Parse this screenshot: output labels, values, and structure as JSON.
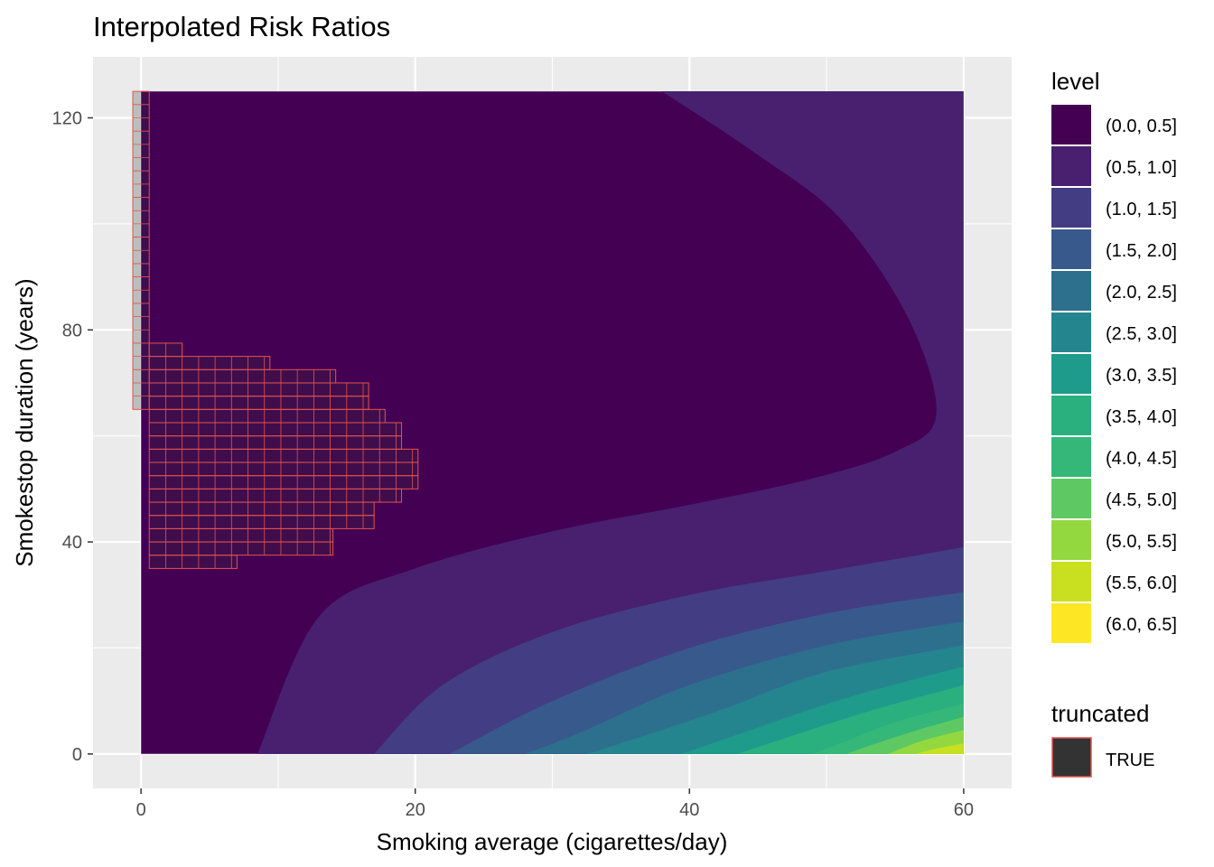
{
  "chart_data": {
    "type": "heatmap",
    "title": "Interpolated Risk Ratios",
    "xlabel": "Smoking average (cigarettes/day)",
    "ylabel": "Smokestop duration (years)",
    "xlim": [
      -3.5,
      63.5
    ],
    "ylim": [
      -6.5,
      131.5
    ],
    "x_ticks": [
      0,
      20,
      40,
      60
    ],
    "y_ticks": [
      0,
      40,
      80,
      120
    ],
    "x_minor": [
      10,
      30,
      50
    ],
    "y_minor": [
      20,
      60,
      100
    ],
    "grid": true,
    "panel_background": "#ebebeb",
    "data_extent": {
      "x": [
        0,
        60
      ],
      "y": [
        0,
        125
      ]
    },
    "level_legend": {
      "title": "level",
      "placement": "right",
      "levels": [
        {
          "label": "(0.0, 0.5]",
          "color": "#440154"
        },
        {
          "label": "(0.5, 1.0]",
          "color": "#48206f"
        },
        {
          "label": "(1.0, 1.5]",
          "color": "#433d84"
        },
        {
          "label": "(1.5, 2.0]",
          "color": "#38598c"
        },
        {
          "label": "(2.0, 2.5]",
          "color": "#2d708e"
        },
        {
          "label": "(2.5, 3.0]",
          "color": "#25858e"
        },
        {
          "label": "(3.0, 3.5]",
          "color": "#1e9b8a"
        },
        {
          "label": "(3.5, 4.0]",
          "color": "#2ab07f"
        },
        {
          "label": "(4.0, 4.5]",
          "color": "#35b779"
        },
        {
          "label": "(4.5, 5.0]",
          "color": "#5ec962"
        },
        {
          "label": "(5.0, 5.5]",
          "color": "#94d840"
        },
        {
          "label": "(5.5, 6.0]",
          "color": "#c8e020"
        },
        {
          "label": "(6.0, 6.5]",
          "color": "#fde725"
        }
      ]
    },
    "level_bands": [
      {
        "level": "(0.5, 1.0]",
        "boundary": [
          [
            38,
            125
          ],
          [
            45,
            113
          ],
          [
            51,
            101
          ],
          [
            56,
            82
          ],
          [
            58,
            64
          ],
          [
            55,
            57
          ],
          [
            49,
            52
          ],
          [
            40,
            47
          ],
          [
            30,
            42
          ],
          [
            20,
            35
          ],
          [
            13,
            26
          ],
          [
            8.5,
            0
          ]
        ]
      },
      {
        "level": "(1.0, 1.5]",
        "boundary": [
          [
            60,
            39
          ],
          [
            50,
            34.5
          ],
          [
            40,
            30
          ],
          [
            30,
            23
          ],
          [
            22,
            13
          ],
          [
            17,
            0
          ]
        ]
      },
      {
        "level": "(1.5, 2.0]",
        "boundary": [
          [
            60,
            30.5
          ],
          [
            50,
            26.5
          ],
          [
            40,
            20
          ],
          [
            30,
            10
          ],
          [
            22.5,
            0
          ]
        ]
      },
      {
        "level": "(2.0, 2.5]",
        "boundary": [
          [
            60,
            25
          ],
          [
            50,
            20.5
          ],
          [
            40,
            13
          ],
          [
            32,
            4
          ],
          [
            28,
            0
          ]
        ]
      },
      {
        "level": "(2.5, 3.0]",
        "boundary": [
          [
            60,
            20.5
          ],
          [
            50,
            15.5
          ],
          [
            42,
            8
          ],
          [
            35,
            2
          ],
          [
            32.5,
            0
          ]
        ]
      },
      {
        "level": "(3.0, 3.5]",
        "boundary": [
          [
            60,
            16.5
          ],
          [
            52,
            11
          ],
          [
            45,
            5
          ],
          [
            40,
            0.5
          ],
          [
            39,
            0
          ]
        ]
      },
      {
        "level": "(3.5, 4.0]",
        "boundary": [
          [
            60,
            13
          ],
          [
            53,
            8
          ],
          [
            47,
            3
          ],
          [
            43.5,
            0
          ]
        ]
      },
      {
        "level": "(4.0, 4.5]",
        "boundary": [
          [
            60,
            9.5
          ],
          [
            55,
            6
          ],
          [
            51,
            2
          ],
          [
            49,
            0
          ]
        ]
      },
      {
        "level": "(4.5, 5.0]",
        "boundary": [
          [
            60,
            7
          ],
          [
            56,
            4
          ],
          [
            52.5,
            1
          ],
          [
            51.5,
            0
          ]
        ]
      },
      {
        "level": "(5.0, 5.5]",
        "boundary": [
          [
            60,
            4.5
          ],
          [
            57,
            2.5
          ],
          [
            54.5,
            0
          ]
        ]
      },
      {
        "level": "(5.5, 6.0]",
        "boundary": [
          [
            60,
            2
          ],
          [
            58,
            1
          ],
          [
            56.5,
            0
          ]
        ]
      }
    ],
    "truncated_legend": {
      "title": "truncated",
      "label": "TRUE",
      "fill": "#333333",
      "border": "#e2524f"
    },
    "truncated_cells": {
      "cell_width": 1.2,
      "cell_height": 2.5,
      "rows": [
        {
          "y": 65,
          "x0": -0.6,
          "x1": 0.6,
          "y1": 125
        },
        {
          "y": 35,
          "x0": 0.6,
          "x1": 7,
          "y1": 37.5
        },
        {
          "y": 37.5,
          "x0": 0.6,
          "x1": 14,
          "y1": 40
        },
        {
          "y": 40,
          "x0": 0.6,
          "x1": 14,
          "y1": 42.5
        },
        {
          "y": 42.5,
          "x0": 0.6,
          "x1": 17,
          "y1": 45
        },
        {
          "y": 45,
          "x0": 0.6,
          "x1": 17,
          "y1": 47.5
        },
        {
          "y": 47.5,
          "x0": 0.6,
          "x1": 19,
          "y1": 50
        },
        {
          "y": 50,
          "x0": 0.6,
          "x1": 20.2,
          "y1": 52.5
        },
        {
          "y": 52.5,
          "x0": 0.6,
          "x1": 20.2,
          "y1": 55
        },
        {
          "y": 55,
          "x0": 0.6,
          "x1": 20.2,
          "y1": 57.5
        },
        {
          "y": 57.5,
          "x0": 0.6,
          "x1": 19,
          "y1": 60
        },
        {
          "y": 60,
          "x0": 0.6,
          "x1": 19,
          "y1": 62.5
        },
        {
          "y": 62.5,
          "x0": 0.6,
          "x1": 17.8,
          "y1": 65
        },
        {
          "y": 65,
          "x0": 0.6,
          "x1": 16.6,
          "y1": 67.5
        },
        {
          "y": 67.5,
          "x0": 0.6,
          "x1": 16.6,
          "y1": 70
        },
        {
          "y": 70,
          "x0": 0.6,
          "x1": 14.2,
          "y1": 72.5
        },
        {
          "y": 72.5,
          "x0": 0.6,
          "x1": 9.4,
          "y1": 75
        },
        {
          "y": 75,
          "x0": 0.6,
          "x1": 3,
          "y1": 77.5
        }
      ]
    }
  }
}
